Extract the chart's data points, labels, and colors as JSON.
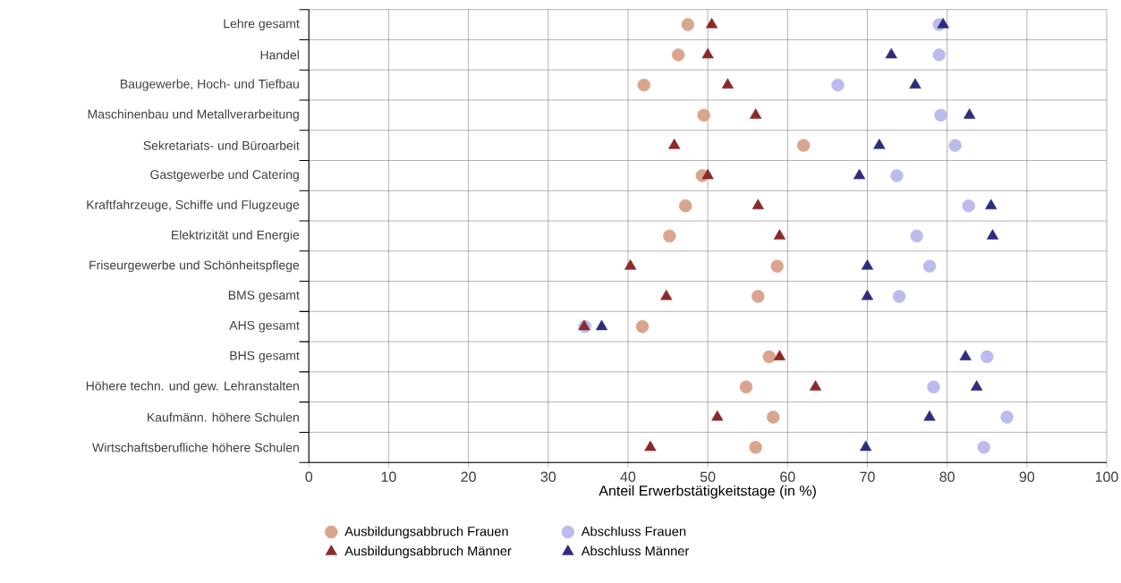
{
  "chart_data": {
    "type": "scatter",
    "orientation": "horizontal",
    "xlabel": "Anteil Erwerbstätigkeitstage (in %)",
    "categories": [
      "Lehre gesamt",
      "Handel",
      "Baugewerbe, Hoch- und Tiefbau",
      "Maschinenbau und Metallverarbeitung",
      "Sekretariats- und Büroarbeit",
      "Gastgewerbe und Catering",
      "Kraftfahrzeuge, Schiffe und Flugzeuge",
      "Elektrizität und Energie",
      "Friseurgewerbe und Schönheitspflege",
      "BMS gesamt",
      "AHS gesamt",
      "BHS gesamt",
      "Höhere techn. und gew. Lehranstalten",
      "Kaufmänn. höhere Schulen",
      "Wirtschaftsberufliche höhere Schulen"
    ],
    "series": [
      {
        "name": "Ausbildungsabbruch Frauen",
        "color": "#d9a58e",
        "marker": "circle",
        "values": [
          47.5,
          46.3,
          42,
          49.5,
          62,
          49.3,
          47.2,
          45.2,
          58.7,
          56.3,
          41.8,
          57.7,
          54.8,
          58.2,
          56
        ]
      },
      {
        "name": "Abschluss Frauen",
        "color": "#bcbcec",
        "marker": "circle",
        "values": [
          79,
          79,
          66.3,
          79.2,
          81,
          73.7,
          82.7,
          76.2,
          77.8,
          74,
          34.6,
          85,
          78.3,
          87.5,
          84.6
        ]
      },
      {
        "name": "Ausbildungsabbruch Männer",
        "color": "#8b2a2a",
        "marker": "triangle",
        "values": [
          50.5,
          50,
          52.5,
          56,
          45.8,
          50,
          56.3,
          59,
          40.3,
          44.8,
          34.5,
          59,
          63.5,
          51.2,
          42.8
        ]
      },
      {
        "name": "Abschluss Männer",
        "color": "#2d2d80",
        "marker": "triangle",
        "values": [
          79.5,
          73,
          76,
          82.8,
          71.5,
          69,
          85.5,
          85.7,
          70,
          70,
          36.7,
          82.3,
          83.7,
          77.8,
          69.8
        ]
      }
    ],
    "xlim": [
      0,
      100
    ],
    "xticks": [
      0,
      10,
      20,
      30,
      40,
      50,
      60,
      70,
      80,
      90,
      100
    ],
    "grid": true,
    "legend": "bottom"
  }
}
